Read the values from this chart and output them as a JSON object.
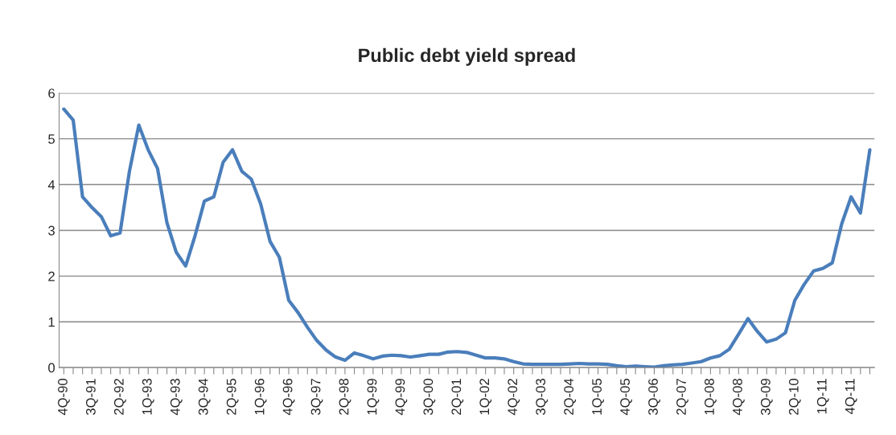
{
  "chart_data": {
    "type": "line",
    "title": "Public debt yield spread",
    "categories": [
      "4Q-90",
      null,
      null,
      "3Q-91",
      null,
      null,
      "2Q-92",
      null,
      null,
      "1Q-93",
      null,
      null,
      "4Q-93",
      null,
      null,
      "3Q-94",
      null,
      null,
      "2Q-95",
      null,
      null,
      "1Q-96",
      null,
      null,
      "4Q-96",
      null,
      null,
      "3Q-97",
      null,
      null,
      "2Q-98",
      null,
      null,
      "1Q-99",
      null,
      null,
      "4Q-99",
      null,
      null,
      "3Q-00",
      null,
      null,
      "2Q-01",
      null,
      null,
      "1Q-02",
      null,
      null,
      "4Q-02",
      null,
      null,
      "3Q-03",
      null,
      null,
      "2Q-04",
      null,
      null,
      "1Q-05",
      null,
      null,
      "4Q-05",
      null,
      null,
      "3Q-06",
      null,
      null,
      "2Q-07",
      null,
      null,
      "1Q-08",
      null,
      null,
      "4Q-08",
      null,
      null,
      "3Q-09",
      null,
      null,
      "2Q-10",
      null,
      null,
      "1Q-11",
      null,
      null,
      "4Q-11",
      null,
      null
    ],
    "series": [
      {
        "color": "#4a7ebb",
        "values": [
          5.65,
          5.41,
          3.73,
          3.5,
          3.3,
          2.88,
          2.94,
          4.29,
          5.3,
          4.76,
          4.35,
          3.17,
          2.52,
          2.22,
          2.88,
          3.64,
          3.73,
          4.49,
          4.76,
          4.29,
          4.12,
          3.58,
          2.76,
          2.41,
          1.47,
          1.2,
          0.88,
          0.59,
          0.38,
          0.23,
          0.16,
          0.32,
          0.26,
          0.19,
          0.25,
          0.27,
          0.26,
          0.23,
          0.26,
          0.29,
          0.29,
          0.34,
          0.35,
          0.33,
          0.27,
          0.21,
          0.21,
          0.19,
          0.13,
          0.08,
          0.07,
          0.07,
          0.07,
          0.07,
          0.08,
          0.09,
          0.08,
          0.08,
          0.07,
          0.04,
          0.02,
          0.03,
          0.02,
          0.01,
          0.04,
          0.06,
          0.07,
          0.1,
          0.13,
          0.21,
          0.26,
          0.4,
          0.73,
          1.07,
          0.79,
          0.56,
          0.62,
          0.76,
          1.47,
          1.82,
          2.11,
          2.17,
          2.29,
          3.14,
          3.73,
          3.38,
          4.76
        ]
      }
    ],
    "ylim": [
      0,
      6
    ],
    "yticks": [
      0,
      1,
      2,
      3,
      4,
      5,
      6
    ],
    "grid": "y",
    "legend": false,
    "marker": "none",
    "line_style": "solid"
  }
}
